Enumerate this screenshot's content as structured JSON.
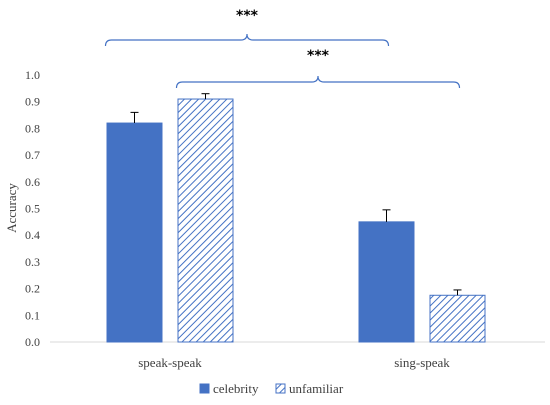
{
  "chart_data": {
    "type": "bar",
    "categories": [
      "speak-speak",
      "sing-speak"
    ],
    "series": [
      {
        "name": "celebrity",
        "values": [
          0.82,
          0.45
        ],
        "errors": [
          0.04,
          0.045
        ],
        "color": "#4472c4",
        "pattern": "solid"
      },
      {
        "name": "unfamiliar",
        "values": [
          0.91,
          0.175
        ],
        "errors": [
          0.02,
          0.02
        ],
        "color": "#4472c4",
        "pattern": "diagonal-hatch"
      }
    ],
    "xlabel": "",
    "ylabel": "Accuracy",
    "ylim": [
      0,
      1.0
    ],
    "yticks": [
      "0.0",
      "0.1",
      "0.2",
      "0.3",
      "0.4",
      "0.5",
      "0.6",
      "0.7",
      "0.8",
      "0.9",
      "1.0"
    ],
    "grid": false,
    "legend_position": "bottom",
    "significance": [
      {
        "label": "***",
        "from": "speak-speak celebrity",
        "to": "sing-speak celebrity"
      },
      {
        "label": "***",
        "from": "speak-speak unfamiliar",
        "to": "sing-speak unfamiliar"
      }
    ]
  }
}
